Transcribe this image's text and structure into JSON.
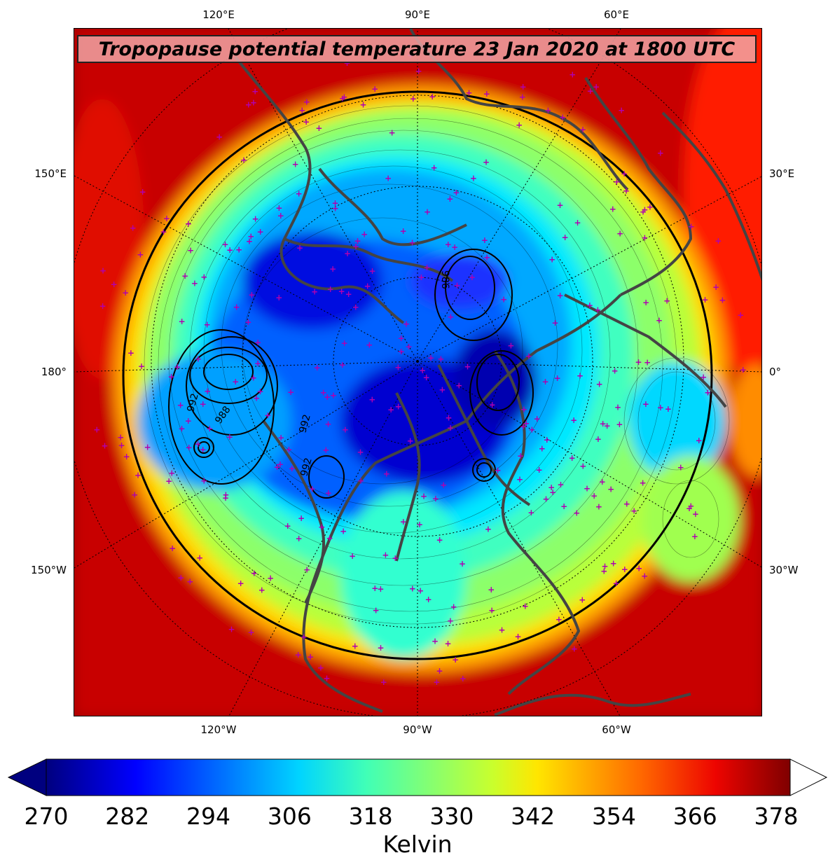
{
  "title": "Tropopause potential temperature 23 Jan 2020 at 1800 UTC",
  "longitude_labels": {
    "top": [
      "120°E",
      "90°E",
      "60°E"
    ],
    "bottom": [
      "120°W",
      "90°W",
      "60°W"
    ],
    "left": [
      "150°E",
      "180°",
      "150°W"
    ],
    "right": [
      "30°E",
      "0°",
      "30°W"
    ]
  },
  "contour_labels": [
    "992",
    "988",
    "992",
    "986",
    "992"
  ],
  "colorbar": {
    "label": "Kelvin",
    "ticks": [
      "270",
      "282",
      "294",
      "306",
      "318",
      "330",
      "342",
      "354",
      "366",
      "378"
    ],
    "min": 270,
    "max": 378,
    "colormap": "jet",
    "extend": "both",
    "colors": [
      "#00007f",
      "#0000ff",
      "#007fff",
      "#00ffff",
      "#7fff7f",
      "#ffff00",
      "#ff7f00",
      "#ff0000",
      "#7f0000"
    ]
  },
  "marker_color": "#b000b0",
  "coastline_color": "#444444"
}
